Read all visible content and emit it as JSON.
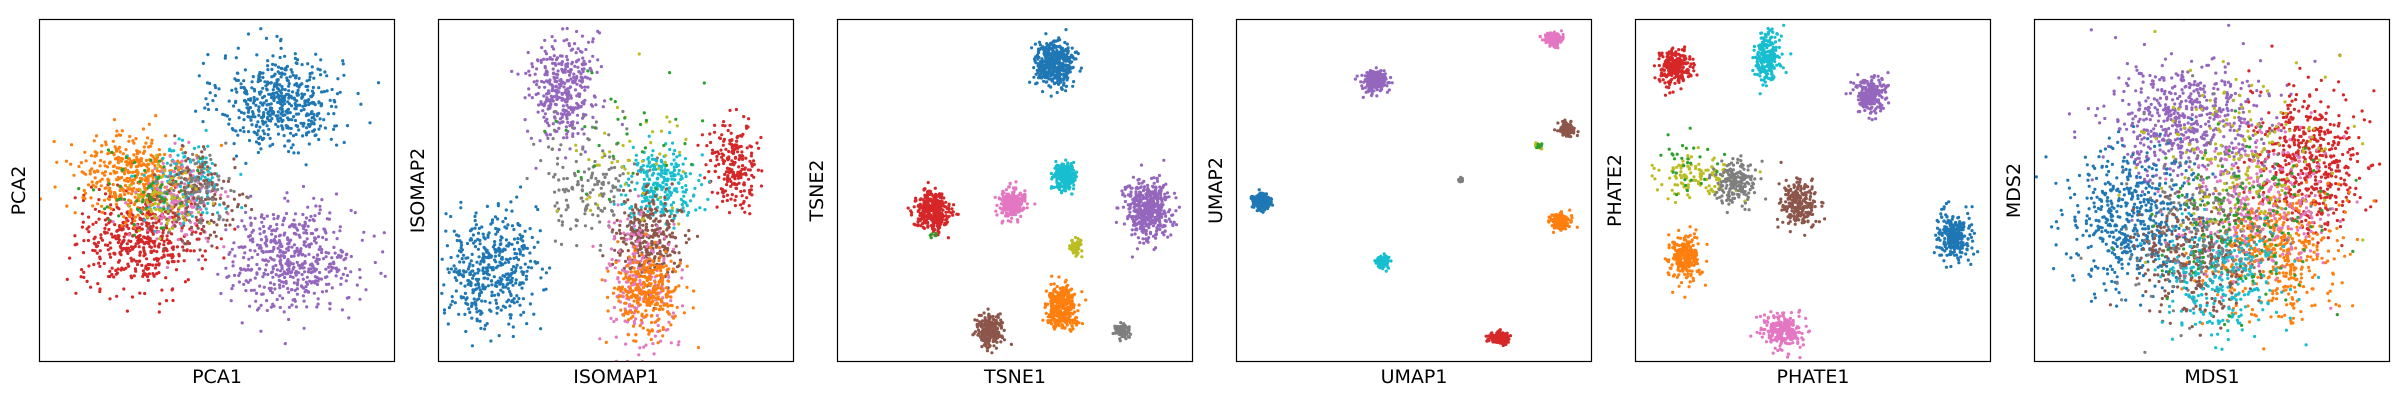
{
  "chart_data": [
    {
      "type": "scatter",
      "title": "",
      "xlabel": "PCA1",
      "ylabel": "PCA2",
      "xlim": [
        0,
        100
      ],
      "ylim": [
        0,
        100
      ],
      "xticks": false,
      "yticks": false,
      "grid": false,
      "legend": "none",
      "clusters": [
        {
          "color": "#1f77b4",
          "x": 68,
          "y": 76,
          "sx": 8.5,
          "sy": 7,
          "n": 520
        },
        {
          "color": "#9467bd",
          "x": 71,
          "y": 30,
          "sx": 9,
          "sy": 7.5,
          "n": 520
        },
        {
          "color": "#d62728",
          "x": 29,
          "y": 36,
          "sx": 8.5,
          "sy": 7,
          "n": 480
        },
        {
          "color": "#ff7f0e",
          "x": 26,
          "y": 54,
          "sx": 8,
          "sy": 6.5,
          "n": 400
        },
        {
          "color": "#17becf",
          "x": 41,
          "y": 52,
          "sx": 6,
          "sy": 6,
          "n": 140
        },
        {
          "color": "#e377c2",
          "x": 39,
          "y": 47,
          "sx": 6,
          "sy": 6,
          "n": 140
        },
        {
          "color": "#8c564b",
          "x": 46,
          "y": 48,
          "sx": 6,
          "sy": 7,
          "n": 160
        },
        {
          "color": "#7f7f7f",
          "x": 43,
          "y": 50,
          "sx": 5,
          "sy": 5,
          "n": 80
        },
        {
          "color": "#bcbd22",
          "x": 36,
          "y": 48,
          "sx": 5,
          "sy": 5,
          "n": 70
        },
        {
          "color": "#2ca02c",
          "x": 31,
          "y": 50,
          "sx": 6,
          "sy": 6,
          "n": 60
        }
      ]
    },
    {
      "type": "scatter",
      "title": "",
      "xlabel": "ISOMAP1",
      "ylabel": "ISOMAP2",
      "xlim": [
        0,
        100
      ],
      "ylim": [
        0,
        100
      ],
      "xticks": false,
      "yticks": false,
      "grid": false,
      "legend": "none",
      "clusters": [
        {
          "color": "#9467bd",
          "x": 35,
          "y": 80,
          "sx": 4.5,
          "sy": 8,
          "n": 380
        },
        {
          "color": "#1f77b4",
          "x": 15,
          "y": 27,
          "sx": 6.5,
          "sy": 8,
          "n": 460
        },
        {
          "color": "#d62728",
          "x": 83,
          "y": 58,
          "sx": 3.5,
          "sy": 6,
          "n": 220
        },
        {
          "color": "#17becf",
          "x": 63,
          "y": 52,
          "sx": 5,
          "sy": 5,
          "n": 280
        },
        {
          "color": "#7f7f7f",
          "x": 43,
          "y": 51,
          "sx": 8,
          "sy": 8,
          "n": 160
        },
        {
          "color": "#8c564b",
          "x": 59,
          "y": 36,
          "sx": 4.5,
          "sy": 6,
          "n": 300
        },
        {
          "color": "#e377c2",
          "x": 57,
          "y": 24,
          "sx": 5,
          "sy": 10,
          "n": 220
        },
        {
          "color": "#ff7f0e",
          "x": 59,
          "y": 20,
          "sx": 4.5,
          "sy": 6,
          "n": 300
        },
        {
          "color": "#bcbd22",
          "x": 55,
          "y": 60,
          "sx": 9,
          "sy": 10,
          "n": 50
        },
        {
          "color": "#2ca02c",
          "x": 52,
          "y": 66,
          "sx": 12,
          "sy": 10,
          "n": 35
        }
      ]
    },
    {
      "type": "scatter",
      "title": "",
      "xlabel": "TSNE1",
      "ylabel": "TSNE2",
      "xlim": [
        0,
        100
      ],
      "ylim": [
        0,
        100
      ],
      "xticks": false,
      "yticks": false,
      "grid": false,
      "legend": "none",
      "clusters": [
        {
          "color": "#1f77b4",
          "x": 61,
          "y": 87,
          "sx": 2.6,
          "sy": 3.2,
          "n": 460
        },
        {
          "color": "#9467bd",
          "x": 87,
          "y": 44,
          "sx": 3.2,
          "sy": 4.2,
          "n": 460
        },
        {
          "color": "#d62728",
          "x": 27,
          "y": 44,
          "sx": 2.4,
          "sy": 2.8,
          "n": 340
        },
        {
          "color": "#e377c2",
          "x": 49,
          "y": 46,
          "sx": 1.8,
          "sy": 2.0,
          "n": 260
        },
        {
          "color": "#17becf",
          "x": 64,
          "y": 54,
          "sx": 1.6,
          "sy": 2.0,
          "n": 220
        },
        {
          "color": "#bcbd22",
          "x": 67,
          "y": 34,
          "sx": 0.8,
          "sy": 1.2,
          "n": 60
        },
        {
          "color": "#ff7f0e",
          "x": 63,
          "y": 16,
          "sx": 2.2,
          "sy": 3.0,
          "n": 320
        },
        {
          "color": "#8c564b",
          "x": 43,
          "y": 9,
          "sx": 1.8,
          "sy": 2.2,
          "n": 240
        },
        {
          "color": "#7f7f7f",
          "x": 80,
          "y": 9,
          "sx": 1.0,
          "sy": 1.0,
          "n": 80
        },
        {
          "color": "#2ca02c",
          "x": 27,
          "y": 37,
          "sx": 0.5,
          "sy": 0.5,
          "n": 6
        }
      ]
    },
    {
      "type": "scatter",
      "title": "",
      "xlabel": "UMAP1",
      "ylabel": "UMAP2",
      "xlim": [
        0,
        100
      ],
      "ylim": [
        0,
        100
      ],
      "xticks": false,
      "yticks": false,
      "grid": false,
      "legend": "none",
      "clusters": [
        {
          "color": "#9467bd",
          "x": 39,
          "y": 82,
          "sx": 1.8,
          "sy": 1.5,
          "n": 260
        },
        {
          "color": "#e377c2",
          "x": 89,
          "y": 94,
          "sx": 1.2,
          "sy": 1.0,
          "n": 160
        },
        {
          "color": "#8c564b",
          "x": 93,
          "y": 68,
          "sx": 1.0,
          "sy": 0.9,
          "n": 140
        },
        {
          "color": "#bcbd22",
          "x": 85,
          "y": 63,
          "sx": 0.5,
          "sy": 0.4,
          "n": 30
        },
        {
          "color": "#2ca02c",
          "x": 85,
          "y": 63,
          "sx": 0.4,
          "sy": 0.3,
          "n": 12
        },
        {
          "color": "#7f7f7f",
          "x": 63,
          "y": 53,
          "sx": 0.3,
          "sy": 0.3,
          "n": 30
        },
        {
          "color": "#1f77b4",
          "x": 7,
          "y": 47,
          "sx": 1.3,
          "sy": 1.2,
          "n": 200
        },
        {
          "color": "#ff7f0e",
          "x": 91,
          "y": 41,
          "sx": 1.3,
          "sy": 1.1,
          "n": 220
        },
        {
          "color": "#17becf",
          "x": 41,
          "y": 29,
          "sx": 0.9,
          "sy": 0.9,
          "n": 120
        },
        {
          "color": "#d62728",
          "x": 74,
          "y": 7,
          "sx": 1.3,
          "sy": 0.8,
          "n": 200
        }
      ]
    },
    {
      "type": "scatter",
      "title": "",
      "xlabel": "PHATE1",
      "ylabel": "PHATE2",
      "xlim": [
        0,
        100
      ],
      "ylim": [
        0,
        100
      ],
      "xticks": false,
      "yticks": false,
      "grid": false,
      "legend": "none",
      "clusters": [
        {
          "color": "#d62728",
          "x": 11,
          "y": 86,
          "sx": 2.2,
          "sy": 2.8,
          "n": 240
        },
        {
          "color": "#17becf",
          "x": 37,
          "y": 89,
          "sx": 1.8,
          "sy": 4.0,
          "n": 220
        },
        {
          "color": "#9467bd",
          "x": 66,
          "y": 78,
          "sx": 2.2,
          "sy": 2.6,
          "n": 240
        },
        {
          "color": "#bcbd22",
          "x": 17,
          "y": 54,
          "sx": 5.5,
          "sy": 3.0,
          "n": 120
        },
        {
          "color": "#7f7f7f",
          "x": 28,
          "y": 52,
          "sx": 3.0,
          "sy": 3.0,
          "n": 180
        },
        {
          "color": "#8c564b",
          "x": 46,
          "y": 46,
          "sx": 2.4,
          "sy": 3.5,
          "n": 240
        },
        {
          "color": "#1f77b4",
          "x": 90,
          "y": 37,
          "sx": 2.6,
          "sy": 3.5,
          "n": 260
        },
        {
          "color": "#ff7f0e",
          "x": 14,
          "y": 30,
          "sx": 2.2,
          "sy": 3.5,
          "n": 240
        },
        {
          "color": "#e377c2",
          "x": 41,
          "y": 9,
          "sx": 3.0,
          "sy": 2.4,
          "n": 240
        },
        {
          "color": "#2ca02c",
          "x": 16,
          "y": 57,
          "sx": 4.5,
          "sy": 4.5,
          "n": 30
        }
      ]
    },
    {
      "type": "scatter",
      "title": "",
      "xlabel": "MDS1",
      "ylabel": "MDS2",
      "xlim": [
        0,
        100
      ],
      "ylim": [
        0,
        100
      ],
      "xticks": false,
      "yticks": false,
      "grid": false,
      "legend": "none",
      "clusters": [
        {
          "color": "#9467bd",
          "x": 43,
          "y": 70,
          "sx": 11,
          "sy": 9,
          "n": 600
        },
        {
          "color": "#d62728",
          "x": 77,
          "y": 58,
          "sx": 8,
          "sy": 10,
          "n": 520
        },
        {
          "color": "#1f77b4",
          "x": 28,
          "y": 42,
          "sx": 9,
          "sy": 10,
          "n": 560
        },
        {
          "color": "#ff7f0e",
          "x": 67,
          "y": 32,
          "sx": 9,
          "sy": 9,
          "n": 480
        },
        {
          "color": "#8c564b",
          "x": 45,
          "y": 30,
          "sx": 8,
          "sy": 9,
          "n": 320
        },
        {
          "color": "#e377c2",
          "x": 62,
          "y": 47,
          "sx": 10,
          "sy": 11,
          "n": 320
        },
        {
          "color": "#17becf",
          "x": 52,
          "y": 24,
          "sx": 9,
          "sy": 9,
          "n": 280
        },
        {
          "color": "#7f7f7f",
          "x": 48,
          "y": 40,
          "sx": 12,
          "sy": 12,
          "n": 200
        },
        {
          "color": "#bcbd22",
          "x": 57,
          "y": 60,
          "sx": 12,
          "sy": 12,
          "n": 180
        },
        {
          "color": "#2ca02c",
          "x": 58,
          "y": 42,
          "sx": 12,
          "sy": 12,
          "n": 160
        }
      ]
    }
  ]
}
